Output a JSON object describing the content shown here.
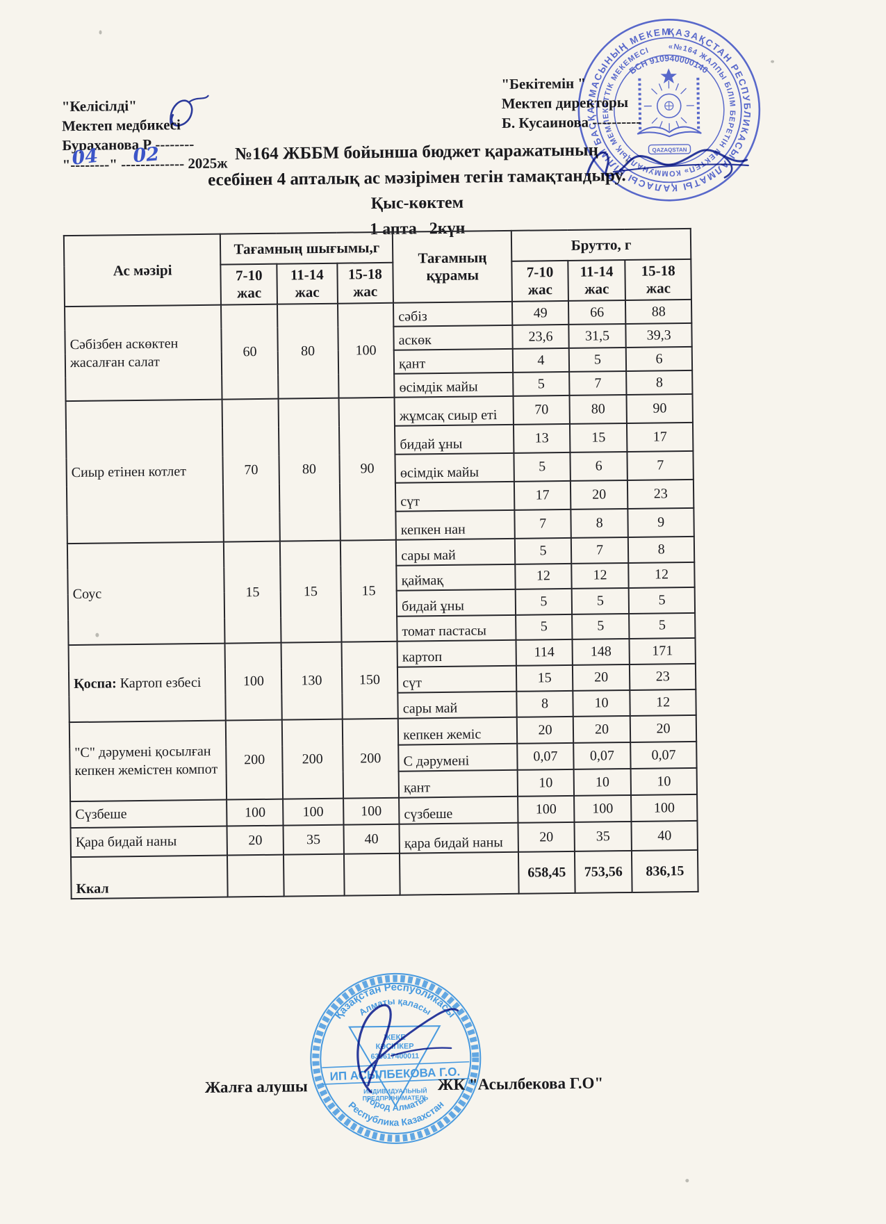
{
  "colors": {
    "page-bg": "#f7f4ed",
    "ink": "#1a1a1e",
    "stamp-blue": "#4254c5",
    "stamp-light": "#2f8ddd",
    "sig-blue": "#2b3a9b",
    "hand-blue": "#3c55c8"
  },
  "approval_left": {
    "line1": "\"Келісілді\"",
    "line2": "Мектеп медбикесі",
    "line3": "Бураханова Р --------",
    "date_static": "\"--------\" ------------- 2025ж",
    "date_day": "04",
    "date_month": "02"
  },
  "approval_right": {
    "line1": "\"Бекітемін \"",
    "line2": "Мектеп  директоры",
    "line3": "Б. Кусаинова  ----------"
  },
  "title": {
    "line1": "№164 ЖББМ бойынша бюджет қаражатының",
    "line2": "есебінен 4 апталық ас мәзірімен тегін тамақтандыру.",
    "line3": "Қыс-көктем",
    "line4": "1 апта   2күн"
  },
  "table": {
    "header": {
      "col_menu": "Ас мәзірі",
      "col_output": "Тағамның шығымы,г",
      "col_composition": "Тағамның құрамы",
      "col_brutto": "Брутто, г",
      "age_groups": [
        "7-10 жас",
        "11-14 жас",
        "15-18 жас"
      ]
    },
    "dishes": [
      {
        "name": "Сәбізбен аскөктен жасалған салат",
        "output": [
          "60",
          "80",
          "100"
        ],
        "components": [
          {
            "name": "сәбіз",
            "brutto": [
              "49",
              "66",
              "88"
            ]
          },
          {
            "name": "аскөк",
            "brutto": [
              "23,6",
              "31,5",
              "39,3"
            ]
          },
          {
            "name": "қант",
            "brutto": [
              "4",
              "5",
              "6"
            ]
          },
          {
            "name": "өсімдік майы",
            "brutto": [
              "5",
              "7",
              "8"
            ]
          }
        ]
      },
      {
        "name": "Сиыр етінен  котлет",
        "output": [
          "70",
          "80",
          "90"
        ],
        "components": [
          {
            "name": "жұмсақ сиыр еті",
            "brutto": [
              "70",
              "80",
              "90"
            ]
          },
          {
            "name": "бидай ұны",
            "brutto": [
              "13",
              "15",
              "17"
            ]
          },
          {
            "name": "өсімдік майы",
            "brutto": [
              "5",
              "6",
              "7"
            ]
          },
          {
            "name": "сүт",
            "brutto": [
              "17",
              "20",
              "23"
            ]
          },
          {
            "name": "кепкен нан",
            "brutto": [
              "7",
              "8",
              "9"
            ]
          }
        ]
      },
      {
        "name": "Соус",
        "output": [
          "15",
          "15",
          "15"
        ],
        "components": [
          {
            "name": "сары май",
            "brutto": [
              "5",
              "7",
              "8"
            ]
          },
          {
            "name": "қаймақ",
            "brutto": [
              "12",
              "12",
              "12"
            ]
          },
          {
            "name": "бидай ұны",
            "brutto": [
              "5",
              "5",
              "5"
            ]
          },
          {
            "name": "томат пастасы",
            "brutto": [
              "5",
              "5",
              "5"
            ]
          }
        ]
      },
      {
        "prefix": "Қоспа:",
        "name": "Картоп езбесі",
        "output": [
          "100",
          "130",
          "150"
        ],
        "components": [
          {
            "name": "картоп",
            "brutto": [
              "114",
              "148",
              "171"
            ]
          },
          {
            "name": "сүт",
            "brutto": [
              "15",
              "20",
              "23"
            ]
          },
          {
            "name": "сары май",
            "brutto": [
              "8",
              "10",
              "12"
            ]
          }
        ]
      },
      {
        "name": "\"С\" дәрумені қосылған кепкен жемістен компот",
        "output": [
          "200",
          "200",
          "200"
        ],
        "components": [
          {
            "name": "кепкен жеміс",
            "brutto": [
              "20",
              "20",
              "20"
            ]
          },
          {
            "name": "С дәрумені",
            "brutto": [
              "0,07",
              "0,07",
              "0,07"
            ]
          },
          {
            "name": "қант",
            "brutto": [
              "10",
              "10",
              "10"
            ]
          }
        ]
      },
      {
        "name": "Сүзбеше",
        "output": [
          "100",
          "100",
          "100"
        ],
        "components": [
          {
            "name": "сүзбеше",
            "brutto": [
              "100",
              "100",
              "100"
            ]
          }
        ]
      },
      {
        "name": "Қара бидай наны",
        "output": [
          "20",
          "35",
          "40"
        ],
        "components": [
          {
            "name": "қара бидай наны",
            "brutto": [
              "20",
              "35",
              "40"
            ]
          }
        ]
      }
    ],
    "footer": {
      "label": "Ккал",
      "totals": [
        "658,45",
        "753,56",
        "836,15"
      ]
    }
  },
  "footer_line": {
    "label": "Жалға  алушы",
    "value": "ЖК \"Асылбекова Г.О\""
  },
  "stamp_school": {
    "ring_outer": "ҚАЗАҚСТАН РЕСПУБЛИКАСЫ АЛМАТЫ ҚАЛАСЫ БІЛІМ БАСҚАРМАСЫНЫҢ МЕКЕМЕСІ",
    "ring_inner": "«№164 ЖАЛПЫ БІЛІМ БЕРЕТІН МЕКТЕП» КОММУНАЛДЫҚ МЕМЛЕКЕТТІК МЕКЕМЕСІ",
    "bsn": "БСН 910940000140",
    "center_caption": "QAZAQSTAN"
  },
  "stamp_ip": {
    "arc_top1": "Қазақстан Республикасы",
    "arc_top2": "Алматы қаласы",
    "center_line1": "ЖЕКЕ",
    "center_line2": "КӘСІПКЕР",
    "center_number": "630617400011",
    "band": "ИП АСЫЛБЕКОВА Г.О.",
    "sub1": "ИНДИВИДУАЛЬНЫЙ",
    "sub2": "ПРЕДПРИНИМАТЕЛЬ",
    "arc_bottom1": "город Алматы",
    "arc_bottom2": "Республика Казахстан"
  }
}
